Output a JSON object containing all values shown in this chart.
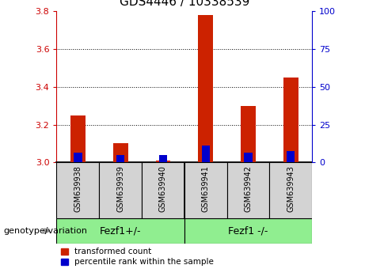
{
  "title": "GDS4446 / 10338539",
  "samples": [
    "GSM639938",
    "GSM639939",
    "GSM639940",
    "GSM639941",
    "GSM639942",
    "GSM639943"
  ],
  "group_labels": [
    "Fezf1+/-",
    "Fezf1 -/-"
  ],
  "red_values": [
    3.25,
    3.1,
    3.01,
    3.78,
    3.3,
    3.45
  ],
  "blue_values": [
    3.05,
    3.04,
    3.04,
    3.09,
    3.05,
    3.06
  ],
  "ymin": 3.0,
  "ymax": 3.8,
  "yticks_left": [
    3.0,
    3.2,
    3.4,
    3.6,
    3.8
  ],
  "yticks_right": [
    0,
    25,
    50,
    75,
    100
  ],
  "left_tick_color": "#CC0000",
  "right_tick_color": "#0000CC",
  "bar_width": 0.35,
  "red_color": "#CC2200",
  "blue_color": "#0000CC",
  "grid_color": "#000000",
  "gray_bg": "#D3D3D3",
  "green_bg": "#90EE90",
  "legend_label_red": "transformed count",
  "legend_label_blue": "percentile rank within the sample",
  "xlabel_label": "genotype/variation"
}
